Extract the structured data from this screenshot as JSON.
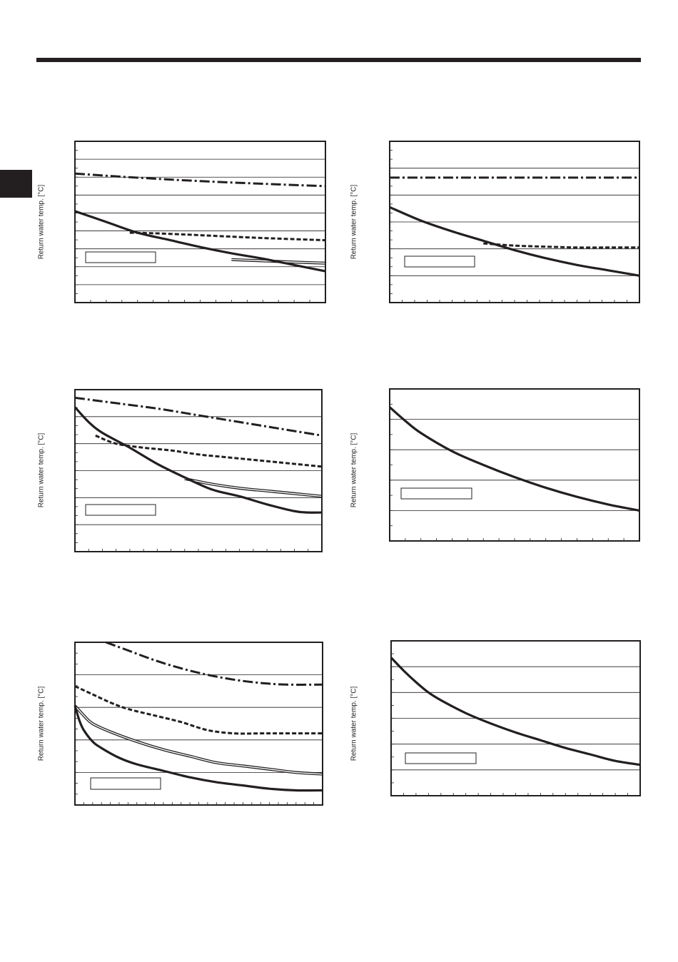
{
  "page": {
    "ylabel": "Return water temp. [°C]"
  },
  "chart_data": [
    {
      "type": "line",
      "position": "top-left",
      "ylabel": "Return water temp. [°C]",
      "xlim": [
        0,
        16
      ],
      "ylim": [
        0,
        9
      ],
      "x_minor_ticks": 16,
      "y_minor_ticks": 18,
      "gridlines_y": [
        1,
        2,
        3,
        4,
        5,
        6,
        7,
        8
      ],
      "series": [
        {
          "style": "dash-dot",
          "x": [
            0,
            2,
            4,
            6,
            8,
            10,
            12,
            14,
            16
          ],
          "y": [
            7.2,
            7.08,
            6.97,
            6.87,
            6.78,
            6.7,
            6.63,
            6.56,
            6.5
          ]
        },
        {
          "style": "dashed",
          "x": [
            3.5,
            5,
            7,
            9,
            11,
            13,
            16
          ],
          "y": [
            3.9,
            3.87,
            3.8,
            3.72,
            3.64,
            3.57,
            3.48
          ]
        },
        {
          "style": "double-thin",
          "x": [
            10,
            12,
            14,
            16
          ],
          "y": [
            2.4,
            2.33,
            2.26,
            2.2
          ]
        },
        {
          "style": "thick",
          "x": [
            0,
            2,
            4,
            6,
            8,
            10,
            12,
            14,
            16
          ],
          "y": [
            5.1,
            4.5,
            3.9,
            3.5,
            3.1,
            2.75,
            2.45,
            2.1,
            1.75
          ]
        }
      ]
    },
    {
      "type": "line",
      "position": "top-right",
      "ylabel": "Return water temp. [°C]",
      "xlim": [
        0,
        16
      ],
      "ylim": [
        0,
        6
      ],
      "x_minor_ticks": 20,
      "y_minor_ticks": 18,
      "gridlines_y": [
        1,
        2,
        3,
        4,
        5
      ],
      "series": [
        {
          "style": "dash-dot",
          "x": [
            0,
            16
          ],
          "y": [
            4.65,
            4.65
          ]
        },
        {
          "style": "dashed",
          "x": [
            6,
            8,
            10,
            12,
            14,
            16
          ],
          "y": [
            2.2,
            2.12,
            2.08,
            2.05,
            2.05,
            2.05
          ]
        },
        {
          "style": "thick",
          "x": [
            0,
            2,
            4,
            6,
            8,
            10,
            12,
            14,
            16
          ],
          "y": [
            3.55,
            3.05,
            2.65,
            2.3,
            1.95,
            1.65,
            1.4,
            1.2,
            1.0
          ]
        }
      ]
    },
    {
      "type": "line",
      "position": "middle-left",
      "ylabel": "Return water temp. [°C]",
      "xlim": [
        0,
        18
      ],
      "ylim": [
        0,
        6
      ],
      "x_minor_ticks": 18,
      "y_minor_ticks": 18,
      "gridlines_y": [
        1,
        2,
        3,
        4,
        5
      ],
      "series": [
        {
          "style": "dash-dot",
          "x": [
            0,
            3,
            6,
            9,
            12,
            15,
            18
          ],
          "y": [
            5.7,
            5.5,
            5.3,
            5.05,
            4.8,
            4.55,
            4.3
          ]
        },
        {
          "style": "dashed",
          "x": [
            1.5,
            3,
            5,
            7,
            9,
            11,
            13,
            15,
            18
          ],
          "y": [
            4.3,
            4.0,
            3.85,
            3.75,
            3.6,
            3.5,
            3.4,
            3.3,
            3.15
          ]
        },
        {
          "style": "double-thin",
          "x": [
            8,
            10,
            12,
            14,
            16,
            18
          ],
          "y": [
            2.7,
            2.5,
            2.35,
            2.25,
            2.15,
            2.05
          ]
        },
        {
          "style": "thick",
          "x": [
            0,
            1,
            2,
            4,
            6,
            8,
            10,
            12,
            14,
            16,
            17,
            18
          ],
          "y": [
            5.35,
            4.8,
            4.4,
            3.85,
            3.25,
            2.75,
            2.3,
            2.05,
            1.75,
            1.5,
            1.45,
            1.45
          ]
        }
      ]
    },
    {
      "type": "line",
      "position": "middle-right",
      "ylabel": "Return water temp. [°C]",
      "xlim": [
        0,
        16
      ],
      "ylim": [
        0,
        5
      ],
      "x_minor_ticks": 16,
      "y_minor_ticks": 10,
      "gridlines_y": [
        1,
        2,
        3,
        4
      ],
      "series": [
        {
          "style": "thick",
          "x": [
            0,
            1,
            2,
            4,
            6,
            8,
            10,
            12,
            14,
            16
          ],
          "y": [
            4.4,
            3.95,
            3.55,
            2.95,
            2.5,
            2.1,
            1.75,
            1.45,
            1.2,
            1.0
          ]
        }
      ]
    },
    {
      "type": "line",
      "position": "bottom-left",
      "ylabel": "Return water temp. [°C]",
      "xlim": [
        0,
        28
      ],
      "ylim": [
        0,
        5
      ],
      "x_minor_ticks": 28,
      "y_minor_ticks": 15,
      "gridlines_y": [
        1,
        2,
        3,
        4
      ],
      "series": [
        {
          "style": "dash-dot",
          "x": [
            3.5,
            6,
            9,
            12,
            15,
            18,
            21,
            24,
            28
          ],
          "y": [
            5.0,
            4.75,
            4.45,
            4.2,
            4.0,
            3.85,
            3.75,
            3.7,
            3.7
          ]
        },
        {
          "style": "dashed",
          "x": [
            0,
            2,
            4,
            6,
            9,
            12,
            15,
            18,
            21,
            24,
            28
          ],
          "y": [
            3.65,
            3.4,
            3.15,
            2.95,
            2.75,
            2.55,
            2.3,
            2.2,
            2.2,
            2.2,
            2.2
          ]
        },
        {
          "style": "double-thin",
          "x": [
            0,
            1,
            2,
            4,
            7,
            10,
            13,
            16,
            19,
            22,
            25,
            28
          ],
          "y": [
            3.05,
            2.75,
            2.5,
            2.25,
            1.95,
            1.7,
            1.5,
            1.3,
            1.2,
            1.1,
            1.0,
            0.95
          ]
        },
        {
          "style": "thick",
          "x": [
            0,
            0.5,
            1,
            2,
            3,
            5,
            7,
            10,
            13,
            16,
            19,
            22,
            25,
            28
          ],
          "y": [
            3.05,
            2.6,
            2.3,
            1.95,
            1.75,
            1.45,
            1.25,
            1.05,
            0.85,
            0.7,
            0.6,
            0.5,
            0.45,
            0.45
          ]
        }
      ]
    },
    {
      "type": "line",
      "position": "bottom-right",
      "ylabel": "Return water temp. [°C]",
      "xlim": [
        0,
        20
      ],
      "ylim": [
        0,
        6
      ],
      "x_minor_ticks": 20,
      "y_minor_ticks": 12,
      "gridlines_y": [
        1,
        2,
        3,
        4,
        5
      ],
      "series": [
        {
          "style": "thick",
          "x": [
            0,
            1,
            2,
            3,
            4,
            6,
            8,
            10,
            12,
            14,
            16,
            18,
            20
          ],
          "y": [
            5.35,
            4.85,
            4.4,
            4.0,
            3.7,
            3.2,
            2.8,
            2.45,
            2.15,
            1.85,
            1.6,
            1.35,
            1.2
          ]
        }
      ]
    }
  ]
}
